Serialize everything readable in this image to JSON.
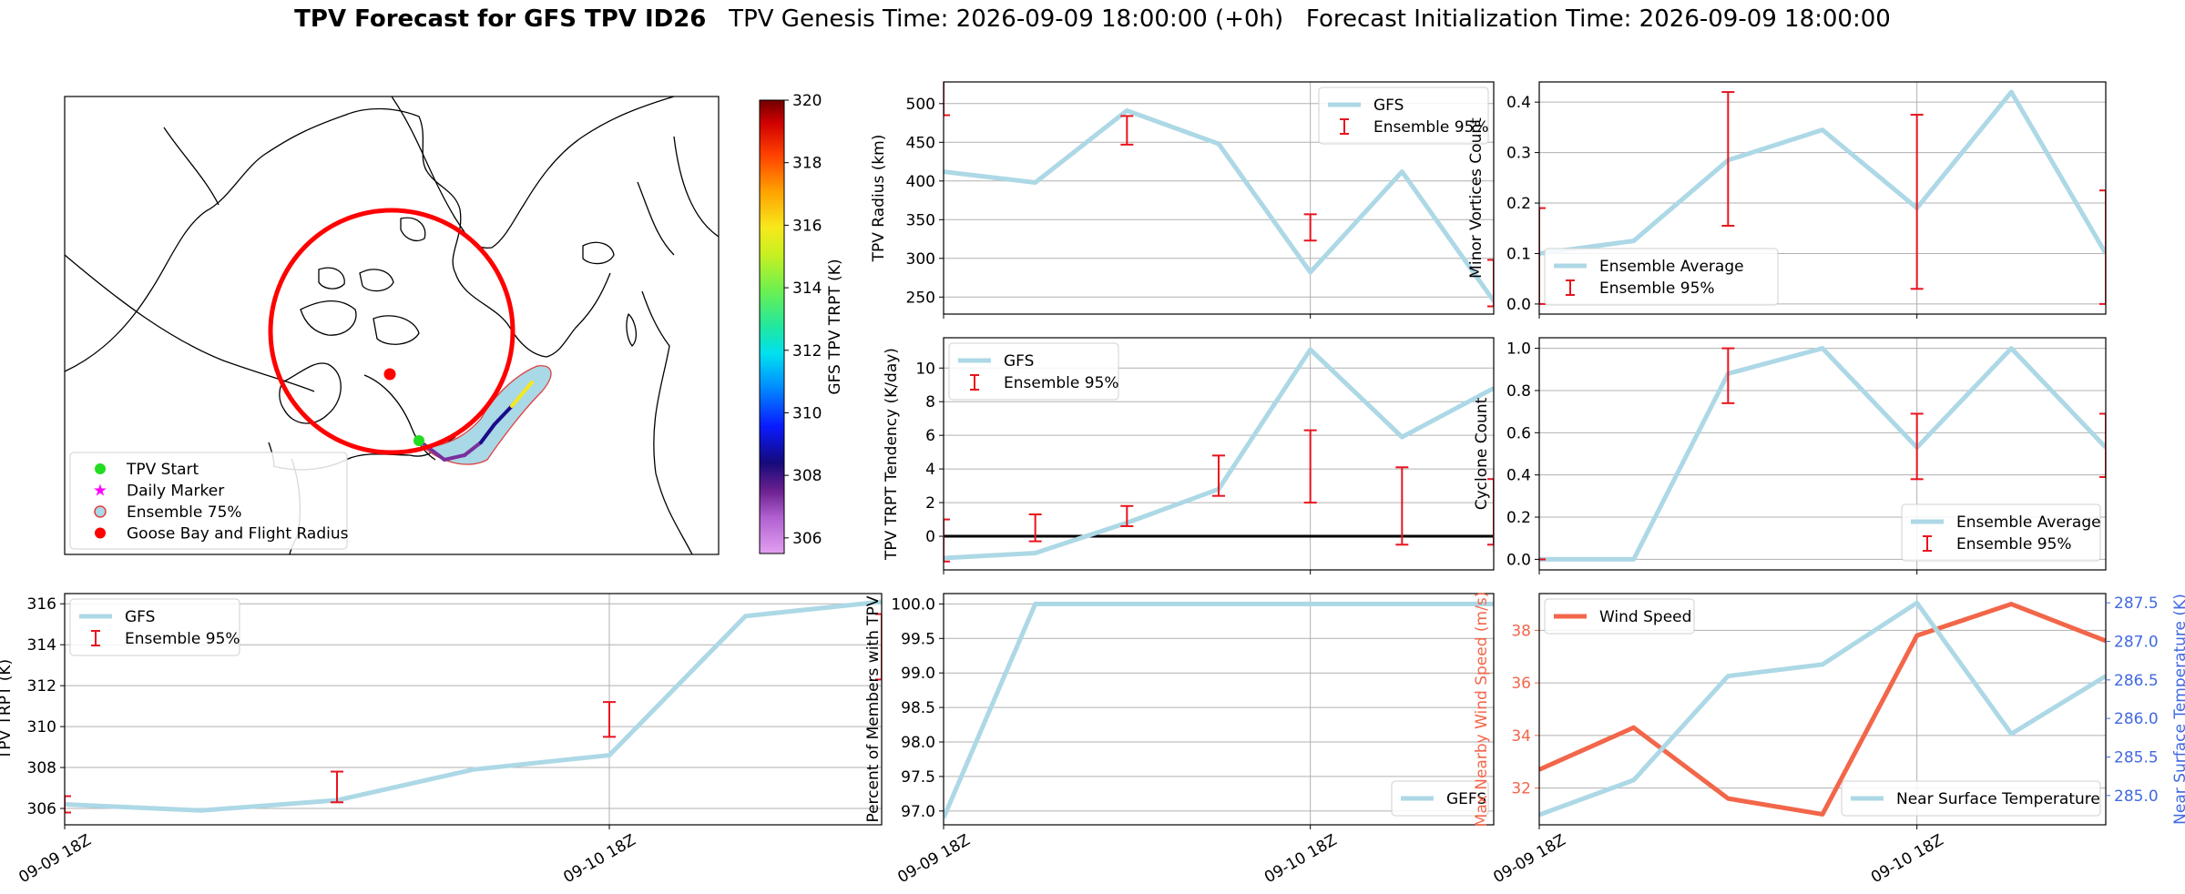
{
  "figure": {
    "title_bold": "TPV Forecast for GFS TPV ID26",
    "title_rest": "   TPV Genesis Time: 2026-09-09 18:00:00 (+0h)   Forecast Initialization Time: 2026-09-09 18:00:00"
  },
  "chart_data": [
    {
      "id": "map",
      "type": "map",
      "legend": [
        "TPV Start",
        "Daily Marker",
        "Ensemble 75%",
        "Goose Bay and Flight Radius"
      ],
      "legend_loc": "lower-left",
      "colorbar": {
        "label": "GFS TPV TRPT (K)",
        "ticks": [
          306,
          308,
          310,
          312,
          314,
          316,
          318,
          320
        ],
        "range": [
          305.5,
          320
        ],
        "cmap": "gist_ncar-like"
      },
      "colors": {
        "start": "#22dd22",
        "daily": "#ff00ff",
        "ensemble_fill": "#a9d8e6",
        "ensemble_edge": "#e04040",
        "goose_bay": "#ff0000",
        "radius": "#ff0000"
      }
    },
    {
      "id": "radius",
      "type": "line",
      "ylabel": "TPV Radius (km)",
      "x": [
        "09-09 18Z",
        "09-10 00Z",
        "09-10 06Z",
        "09-10 12Z",
        "09-10 18Z",
        "09-11 00Z",
        "09-11 06Z"
      ],
      "xticks": [
        "",
        ""
      ],
      "ylim": [
        228,
        528
      ],
      "yticks": [
        250,
        300,
        350,
        400,
        450,
        500
      ],
      "series": [
        {
          "name": "GFS",
          "values": [
            412,
            398,
            491,
            448,
            282,
            412,
            245
          ]
        }
      ],
      "errorbars": {
        "name": "Ensemble 95%",
        "values": [
          [
            485,
            535
          ],
          null,
          [
            447,
            484
          ],
          null,
          [
            323,
            357
          ],
          null,
          [
            238,
            298
          ]
        ]
      },
      "legend_loc": "upper-right"
    },
    {
      "id": "minor",
      "type": "line",
      "ylabel": "Minor Vortices Count",
      "x": [
        "09-09 18Z",
        "09-10 00Z",
        "09-10 06Z",
        "09-10 12Z",
        "09-10 18Z",
        "09-11 00Z",
        "09-11 06Z"
      ],
      "ylim": [
        -0.02,
        0.44
      ],
      "yticks": [
        0.0,
        0.1,
        0.2,
        0.3,
        0.4
      ],
      "series": [
        {
          "name": "Ensemble Average",
          "values": [
            0.1,
            0.125,
            0.285,
            0.345,
            0.19,
            0.42,
            0.1
          ]
        }
      ],
      "errorbars": {
        "name": "Ensemble 95%",
        "values": [
          [
            0.0,
            0.19
          ],
          null,
          [
            0.155,
            0.42
          ],
          null,
          [
            0.03,
            0.375
          ],
          null,
          [
            0.0,
            0.225
          ]
        ]
      },
      "legend_loc": "lower-left"
    },
    {
      "id": "tendency",
      "type": "line",
      "ylabel": "TPV TRPT Tendency (K/day)",
      "x": [
        "09-09 18Z",
        "09-10 00Z",
        "09-10 06Z",
        "09-10 12Z",
        "09-10 18Z",
        "09-11 00Z",
        "09-11 06Z"
      ],
      "ylim": [
        -2.0,
        11.8
      ],
      "yticks": [
        0,
        2,
        4,
        6,
        8,
        10
      ],
      "series": [
        {
          "name": "GFS",
          "values": [
            -1.3,
            -1.0,
            0.8,
            2.8,
            11.1,
            5.9,
            8.8
          ]
        }
      ],
      "errorbars": {
        "name": "Ensemble 95%",
        "values": [
          [
            -1.5,
            1.0
          ],
          [
            -0.3,
            1.3
          ],
          [
            0.6,
            1.8
          ],
          [
            2.4,
            4.8
          ],
          [
            2.0,
            6.3
          ],
          [
            -0.5,
            4.1
          ],
          [
            -0.5,
            3.4
          ]
        ]
      },
      "zero_line": true,
      "legend_loc": "upper-left"
    },
    {
      "id": "cyclone",
      "type": "line",
      "ylabel": "Cyclone Count",
      "x": [
        "09-09 18Z",
        "09-10 00Z",
        "09-10 06Z",
        "09-10 12Z",
        "09-10 18Z",
        "09-11 00Z",
        "09-11 06Z"
      ],
      "ylim": [
        -0.05,
        1.05
      ],
      "yticks": [
        0.0,
        0.2,
        0.4,
        0.6,
        0.8,
        1.0
      ],
      "series": [
        {
          "name": "Ensemble Average",
          "values": [
            0.0,
            0.0,
            0.88,
            1.0,
            0.53,
            1.0,
            0.53
          ]
        }
      ],
      "errorbars": {
        "name": "Ensemble 95%",
        "values": [
          [
            0.0,
            0.0
          ],
          null,
          [
            0.74,
            1.0
          ],
          null,
          [
            0.38,
            0.69
          ],
          null,
          [
            0.39,
            0.69
          ]
        ]
      },
      "legend_loc": "lower-right"
    },
    {
      "id": "trpt",
      "type": "line",
      "ylabel": "TPV TRPT (K)",
      "x": [
        "09-09 18Z",
        "09-10 00Z",
        "09-10 06Z",
        "09-10 12Z",
        "09-10 18Z",
        "09-11 00Z",
        "09-11 06Z"
      ],
      "xticks": [
        "09-09 18Z",
        "09-10 18Z"
      ],
      "ylim": [
        305.2,
        316.5
      ],
      "yticks": [
        306,
        308,
        310,
        312,
        314,
        316
      ],
      "series": [
        {
          "name": "GFS",
          "values": [
            306.2,
            305.9,
            306.4,
            307.9,
            308.6,
            315.4,
            316.1
          ]
        }
      ],
      "errorbars": {
        "name": "Ensemble 95%",
        "values": [
          [
            305.8,
            306.6
          ],
          null,
          [
            306.3,
            307.8
          ],
          null,
          [
            309.5,
            311.2
          ],
          null,
          [
            312.3,
            315.5
          ]
        ]
      },
      "legend_loc": "upper-left"
    },
    {
      "id": "percent",
      "type": "line",
      "ylabel": "Percent of Members with TPV",
      "x": [
        "09-09 18Z",
        "09-10 00Z",
        "09-10 06Z",
        "09-10 12Z",
        "09-10 18Z",
        "09-11 00Z",
        "09-11 06Z"
      ],
      "xticks": [
        "09-09 18Z",
        "09-10 18Z"
      ],
      "ylim": [
        96.8,
        100.15
      ],
      "yticks": [
        97.0,
        97.5,
        98.0,
        98.5,
        99.0,
        99.5,
        100.0
      ],
      "series": [
        {
          "name": "GEFS",
          "values": [
            96.9,
            100.0,
            100.0,
            100.0,
            100.0,
            100.0,
            100.0
          ]
        }
      ],
      "legend_loc": "lower-right"
    },
    {
      "id": "wind",
      "type": "line",
      "ylabel": "Max Nearby Wind Speed (m/s)",
      "y2label": "Near Surface Temperature (K)",
      "x": [
        "09-09 18Z",
        "09-10 00Z",
        "09-10 06Z",
        "09-10 12Z",
        "09-10 18Z",
        "09-11 00Z",
        "09-11 06Z"
      ],
      "xticks": [
        "09-09 18Z",
        "09-10 18Z"
      ],
      "ylim": [
        30.6,
        39.4
      ],
      "yticks": [
        32,
        34,
        36,
        38
      ],
      "y2lim": [
        284.62,
        287.62
      ],
      "y2ticks": [
        285.0,
        285.5,
        286.0,
        286.5,
        287.0,
        287.5
      ],
      "series": [
        {
          "name": "Wind Speed",
          "values": [
            32.7,
            34.3,
            31.6,
            31.0,
            37.8,
            39.0,
            37.6
          ],
          "axis": "left"
        },
        {
          "name": "Near Surface Temperature",
          "values": [
            284.75,
            285.2,
            286.55,
            286.7,
            287.5,
            285.8,
            286.55
          ],
          "axis": "right"
        }
      ],
      "legend_loc": [
        "upper-left",
        "lower-right"
      ],
      "colors": {
        "wind": "#f2664a",
        "temp": "#add8e6",
        "temp_axis": "#4169e1",
        "wind_axis": "#f2664a"
      }
    }
  ],
  "colors": {
    "line": "#add8e6",
    "errorbar": "#e8141e",
    "grid": "#b0b0b0"
  }
}
